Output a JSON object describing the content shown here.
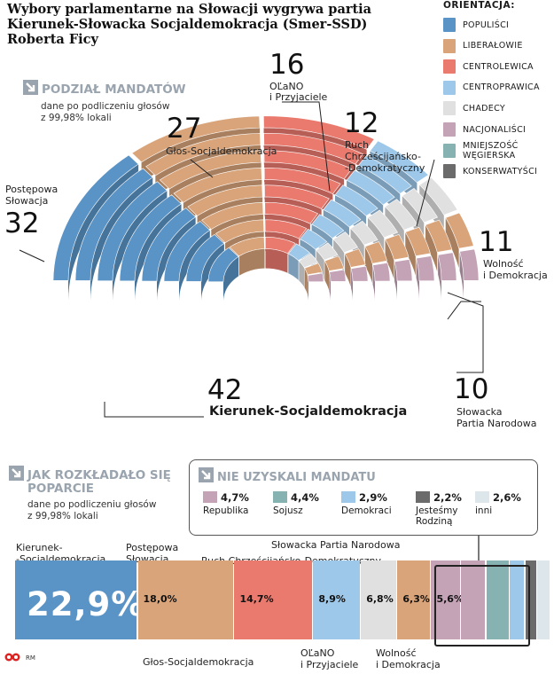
{
  "title": "Wybory parlamentarne na Słowacji wygrywa partia Kierunek-Słowacka Socjaldemokracja (Smer-SSD) Roberta Ficy",
  "legend": {
    "title": "ORIENTACJA:",
    "items": [
      {
        "label": "POPULIŚCI",
        "color": "#5a93c6"
      },
      {
        "label": "LIBERAŁOWIE",
        "color": "#d9a47a"
      },
      {
        "label": "CENTROLEWICA",
        "color": "#ea7a6e"
      },
      {
        "label": "CENTROPRAWICA",
        "color": "#9ec8ea"
      },
      {
        "label": "CHADECY",
        "color": "#e0e0e0"
      },
      {
        "label": "NACJONALIŚCI",
        "color": "#c4a3b6"
      },
      {
        "label": "MNIEJSZOŚĆ WĘGIERSKA",
        "color": "#86b3b2"
      },
      {
        "label": "KONSERWATYŚCI",
        "color": "#6b6b6b"
      }
    ]
  },
  "seats_section": {
    "heading": "PODZIAŁ MANDATÓW",
    "sub1": "dane po podliczeniu głosów",
    "sub2": "z 99,98% lokali"
  },
  "seat_labels": {
    "smer": {
      "num": "42",
      "name": "Kierunek-Socjaldemokracja"
    },
    "ps": {
      "num": "32",
      "name1": "Postępowa",
      "name2": "Słowacja"
    },
    "hlas": {
      "num": "27",
      "name": "Głos-Socjaldemokracja"
    },
    "olano": {
      "num": "16",
      "name1": "OĽaNO",
      "name2": "i Przyjaciele"
    },
    "kdh": {
      "num": "12",
      "name1": "Ruch",
      "name2": "Chrześcijańsko-",
      "name3": "-Demokratyczny"
    },
    "sas": {
      "num": "11",
      "name1": "Wolność",
      "name2": "i Demokracja"
    },
    "sns": {
      "num": "10",
      "name1": "Słowacka",
      "name2": "Partia Narodowa"
    }
  },
  "support_section": {
    "heading1": "JAK ROZKŁADAŁO SIĘ",
    "heading2": "POPARCIE",
    "sub1": "dane po podliczeniu głosów",
    "sub2": "z 99,98% lokali"
  },
  "no_mandate": {
    "heading": "NIE UZYSKALI MANDATU",
    "items": [
      {
        "pct": "4,7%",
        "name": "Republika",
        "name2": "",
        "color": "#c4a3b6"
      },
      {
        "pct": "4,4%",
        "name": "Sojusz",
        "name2": "",
        "color": "#86b3b2"
      },
      {
        "pct": "2,9%",
        "name": "Demokraci",
        "name2": "",
        "color": "#9ec8ea"
      },
      {
        "pct": "2,2%",
        "name": "Jesteśmy",
        "name2": "Rodziną",
        "color": "#6b6b6b"
      },
      {
        "pct": "2,6%",
        "name": "inni",
        "name2": "",
        "color": "#dde6ea"
      }
    ]
  },
  "bar_labels": {
    "smer1": "Kierunek-",
    "smer2": "-Socjaldemokracja",
    "ps1": "Postępowa",
    "ps2": "Słowacja",
    "sns": "Słowacka Partia Narodowa",
    "kdh": "Ruch Chrześcijańsko-Demokratyczny",
    "hlas": "Głos-Socjaldemokracja",
    "olano1": "OĽaNO",
    "olano2": "i Przyjaciele",
    "sas1": "Wolność",
    "sas2": "i Demokracja"
  },
  "source": "RM",
  "chart_data": [
    {
      "type": "parliament",
      "total_seats": 150,
      "series": [
        {
          "name": "Kierunek-Socjaldemokracja",
          "seats": 42,
          "color": "#5a93c6"
        },
        {
          "name": "Postępowa Słowacja",
          "seats": 32,
          "color": "#d9a47a"
        },
        {
          "name": "Głos-Socjaldemokracja",
          "seats": 27,
          "color": "#ea7a6e"
        },
        {
          "name": "OĽaNO i Przyjaciele",
          "seats": 16,
          "color": "#9ec8ea"
        },
        {
          "name": "Ruch Chrześcijańsko-Demokratyczny",
          "seats": 12,
          "color": "#e0e0e0"
        },
        {
          "name": "Wolność i Demokracja",
          "seats": 11,
          "color": "#d9a47a"
        },
        {
          "name": "Słowacka Partia Narodowa",
          "seats": 10,
          "color": "#c4a3b6"
        }
      ]
    },
    {
      "type": "bar",
      "orientation": "horizontal-stacked",
      "categories": [
        "Kierunek-Socjaldemokracja",
        "Postępowa Słowacja",
        "Głos-Socjaldemokracja",
        "OĽaNO i Przyjaciele",
        "Ruch Chrześcijańsko-Demokratyczny",
        "Wolność i Demokracja",
        "Słowacka Partia Narodowa",
        "Republika",
        "Sojusz",
        "Demokraci",
        "Jesteśmy Rodziną",
        "inni"
      ],
      "values": [
        22.9,
        18.0,
        14.7,
        8.9,
        6.8,
        6.3,
        5.6,
        4.7,
        4.4,
        2.9,
        2.2,
        2.6
      ],
      "value_labels": [
        "22,9%",
        "18,0%",
        "14,7%",
        "8,9%",
        "6,8%",
        "6,3%",
        "5,6%",
        "",
        "",
        "",
        "",
        ""
      ],
      "colors": [
        "#5a93c6",
        "#d9a47a",
        "#ea7a6e",
        "#9ec8ea",
        "#e0e0e0",
        "#d9a47a",
        "#c4a3b6",
        "#c4a3b6",
        "#86b3b2",
        "#9ec8ea",
        "#6b6b6b",
        "#dde6ea"
      ]
    }
  ]
}
